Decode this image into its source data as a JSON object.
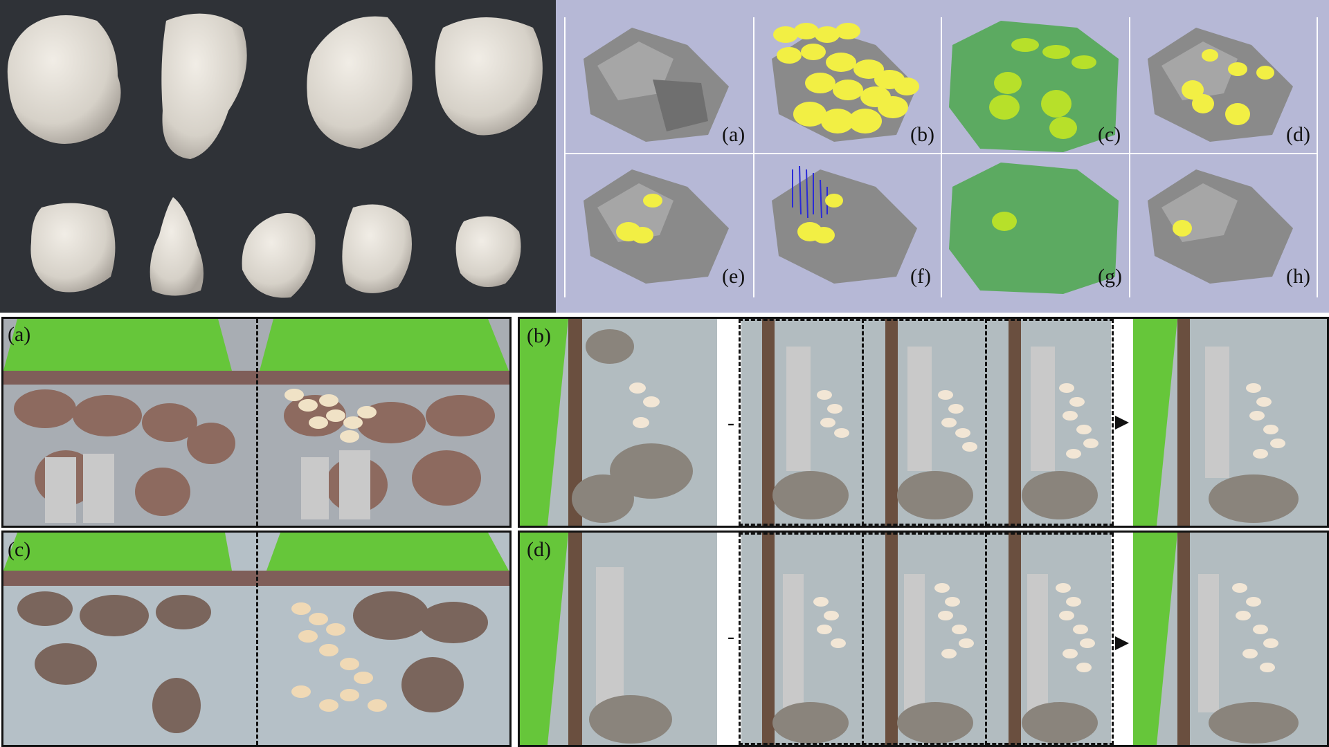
{
  "figure": {
    "top_right_labels": [
      "(a)",
      "(b)",
      "(c)",
      "(d)",
      "(e)",
      "(f)",
      "(g)",
      "(h)"
    ],
    "bottom_left_labels": [
      "(a)",
      "(c)"
    ],
    "bottom_right_labels": [
      "(b)",
      "(d)"
    ]
  },
  "colors": {
    "dark_bg": "#2f3237",
    "sim_bg": "#b6b8d6",
    "stone_yellow": "#f2ef44",
    "green_volume": "#3ea53a",
    "turf_green": "#66c63a",
    "floor_grey": "#b5c0c7"
  }
}
